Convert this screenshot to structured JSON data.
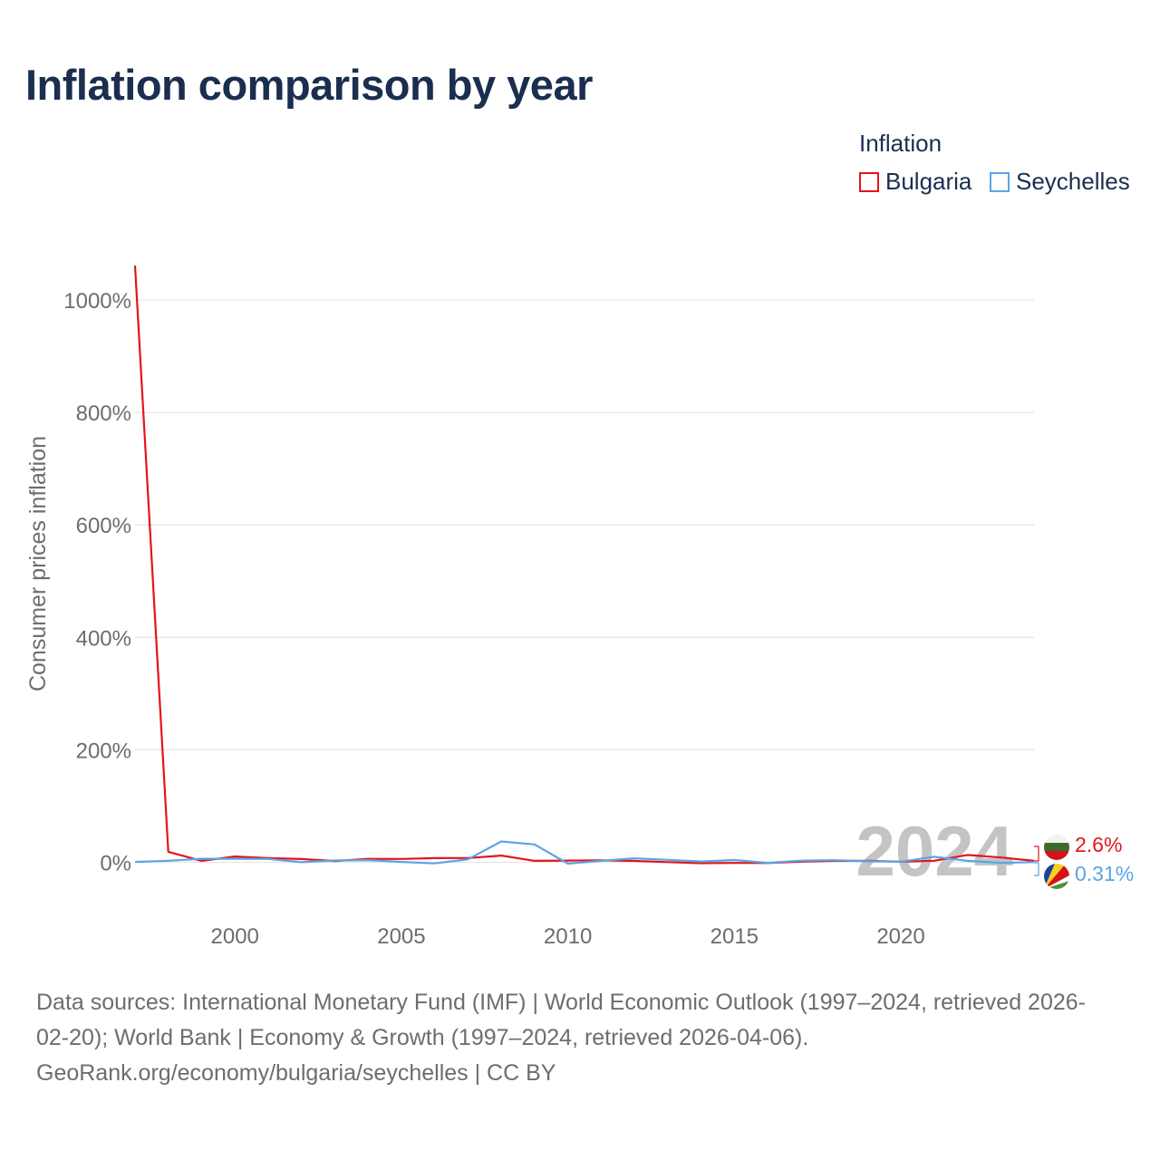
{
  "title": "Inflation comparison by year",
  "legend": {
    "title": "Inflation",
    "items": [
      {
        "label": "Bulgaria",
        "color": "#e4141b"
      },
      {
        "label": "Seychelles",
        "color": "#5aa5e6"
      }
    ]
  },
  "year_watermark": "2024",
  "end_labels": {
    "bulgaria": "2.6%",
    "seychelles": "0.31%"
  },
  "footer": {
    "line1": "Data sources: International Monetary Fund (IMF) | World Economic Outlook (1997–2024, retrieved 2026-",
    "line2": "02-20); World Bank | Economy & Growth (1997–2024, retrieved 2026-04-06).",
    "line3": "GeoRank.org/economy/bulgaria/seychelles | CC BY"
  },
  "chart_data": {
    "type": "line",
    "ylabel": "Consumer prices inflation",
    "xlabel": "",
    "xlim": [
      1997,
      2024
    ],
    "ylim": [
      -100,
      1060
    ],
    "x_ticks": [
      2000,
      2005,
      2010,
      2015,
      2020
    ],
    "y_ticks": [
      0,
      200,
      400,
      600,
      800,
      1000
    ],
    "y_tick_labels": [
      "0%",
      "200%",
      "400%",
      "600%",
      "800%",
      "1000%"
    ],
    "grid": true,
    "x": [
      1997,
      1998,
      1999,
      2000,
      2001,
      2002,
      2003,
      2004,
      2005,
      2006,
      2007,
      2008,
      2009,
      2010,
      2011,
      2012,
      2013,
      2014,
      2015,
      2016,
      2017,
      2018,
      2019,
      2020,
      2021,
      2022,
      2023,
      2024
    ],
    "series": [
      {
        "name": "Bulgaria",
        "color": "#e4141b",
        "values": [
          1061,
          18.7,
          2.6,
          10.3,
          7.4,
          5.8,
          2.3,
          6.1,
          6.0,
          7.4,
          7.6,
          12.0,
          2.5,
          3.0,
          3.4,
          2.4,
          0.4,
          -1.6,
          -1.1,
          -1.3,
          1.2,
          2.6,
          2.5,
          1.2,
          2.8,
          13.0,
          8.6,
          2.6
        ]
      },
      {
        "name": "Seychelles",
        "color": "#5aa5e6",
        "values": [
          0.6,
          2.7,
          6.3,
          6.3,
          6.0,
          0.2,
          3.3,
          3.9,
          0.6,
          -1.9,
          5.3,
          37.0,
          31.8,
          -2.4,
          2.6,
          7.1,
          4.3,
          1.4,
          4.0,
          -1.0,
          2.9,
          3.7,
          1.8,
          1.2,
          9.8,
          2.6,
          -1.0,
          0.31
        ]
      }
    ]
  }
}
